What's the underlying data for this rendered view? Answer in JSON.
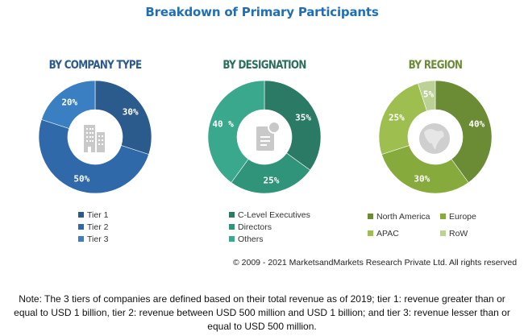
{
  "title": "Breakdown of Primary Participants",
  "chart_data": [
    {
      "type": "pie",
      "title": "BY COMPANY TYPE",
      "donut": true,
      "center_icon": "buildings-icon",
      "categories": [
        "Tier 1",
        "Tier 2",
        "Tier 3"
      ],
      "values": [
        30,
        50,
        20
      ],
      "labels": [
        "30%",
        "50%",
        "20%"
      ],
      "colors": [
        "#2b5b8c",
        "#2f69a9",
        "#3a7fc1"
      ],
      "title_color": "#2b5b8c",
      "legend": "bottom"
    },
    {
      "type": "pie",
      "title": "BY DESIGNATION",
      "donut": true,
      "center_icon": "document-icon",
      "categories": [
        "C-Level Executives",
        "Directors",
        "Others"
      ],
      "values": [
        35,
        25,
        40
      ],
      "labels": [
        "35%",
        "25%",
        "40 %"
      ],
      "colors": [
        "#2a7a66",
        "#2f9479",
        "#3aa88c"
      ],
      "title_color": "#2a6e5e",
      "legend": "bottom"
    },
    {
      "type": "pie",
      "title": "BY REGION",
      "donut": true,
      "center_icon": "globe-icon",
      "categories": [
        "North America",
        "Europe",
        "APAC",
        "RoW"
      ],
      "values": [
        40,
        30,
        25,
        5
      ],
      "labels": [
        "40%",
        "30%",
        "25%",
        "5%"
      ],
      "colors": [
        "#6b8c35",
        "#86aa3c",
        "#9ebf4f",
        "#bcd195"
      ],
      "title_color": "#6b8c35",
      "legend": "bottom"
    }
  ],
  "copyright": "© 2009 - 2021 MarketsandMarkets Research Private Ltd. All rights reserved",
  "note": "Note: The 3 tiers of companies are defined based on their total revenue as of 2019; tier 1: revenue greater than or equal to USD 1 billion, tier 2: revenue between USD 500 million and USD 1 billion; and tier 3: revenue lesser than or equal to USD 500 million."
}
